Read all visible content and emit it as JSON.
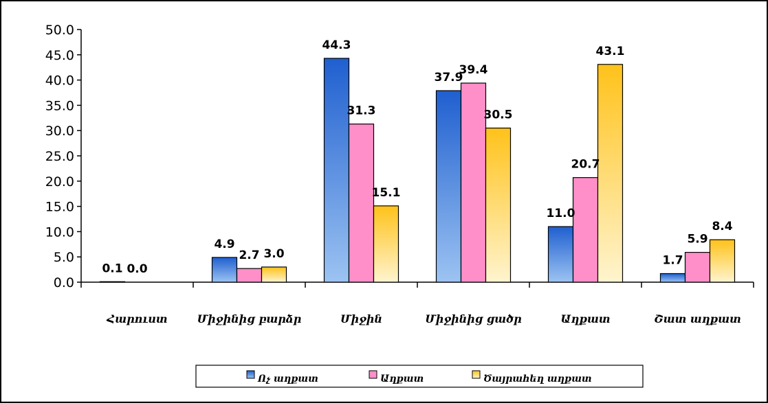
{
  "chart_data": {
    "type": "bar",
    "title": "",
    "xlabel": "",
    "ylabel": "",
    "ylim": [
      0,
      50
    ],
    "y_ticks": [
      "0.0",
      "5.0",
      "10.0",
      "15.0",
      "20.0",
      "25.0",
      "30.0",
      "35.0",
      "40.0",
      "45.0",
      "50.0"
    ],
    "grid": false,
    "legend_position": "bottom",
    "categories": [
      "Հարուստ",
      "Միջինից բարձր",
      "Միջին",
      "Միջինից ցածր",
      "Աղքատ",
      "Շատ աղքատ"
    ],
    "series": [
      {
        "name": "Ոչ աղքատ",
        "values": [
          0.1,
          4.9,
          44.3,
          37.9,
          11.0,
          1.7
        ],
        "labels": [
          "0.1",
          "4.9",
          "44.3",
          "37.9",
          "11.0",
          "1.7"
        ],
        "color_top": "#1f5fcf",
        "color_bottom": "#9cc3f2"
      },
      {
        "name": "Աղքատ",
        "values": [
          0.0,
          2.7,
          31.3,
          39.4,
          20.7,
          5.9
        ],
        "labels": [
          "0.0",
          "2.7",
          "31.3",
          "39.4",
          "20.7",
          "5.9"
        ],
        "color_top": "#ff8fc8",
        "color_bottom": "#ff8fc8"
      },
      {
        "name": "Ծայրահեղ աղքատ",
        "values": [
          0.0,
          3.0,
          15.1,
          30.5,
          43.1,
          8.4
        ],
        "labels": [
          "",
          "3.0",
          "15.1",
          "30.5",
          "43.1",
          "8.4"
        ],
        "color_top": "#ffc21a",
        "color_bottom": "#fff4cf"
      }
    ]
  }
}
